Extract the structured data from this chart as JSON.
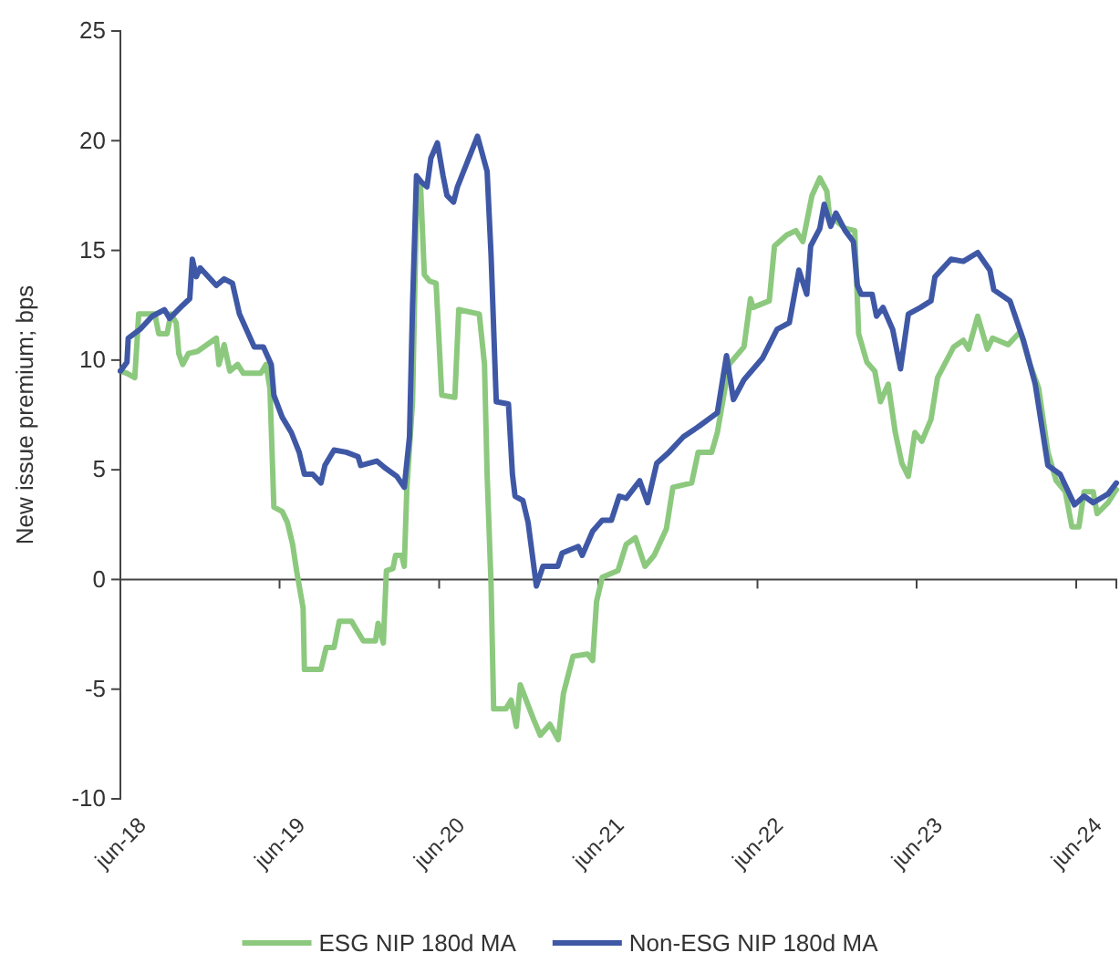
{
  "chart_data": {
    "type": "line",
    "ylabel": "New issue premium; bps",
    "xlim": [
      "2018-06-01",
      "2024-09-01"
    ],
    "xticks": [
      {
        "value": "2018-06-01",
        "label": "jun-18"
      },
      {
        "value": "2019-06-01",
        "label": "jun-19"
      },
      {
        "value": "2020-06-01",
        "label": "jun-20"
      },
      {
        "value": "2021-06-01",
        "label": "jun-21"
      },
      {
        "value": "2022-06-01",
        "label": "jun-22"
      },
      {
        "value": "2023-06-01",
        "label": "jun-23"
      },
      {
        "value": "2024-06-01",
        "label": "jun-24"
      }
    ],
    "ylim": [
      -10,
      25
    ],
    "yticks": [
      -10,
      -5,
      0,
      5,
      10,
      15,
      20,
      25
    ],
    "grid": false,
    "legend": "bottom",
    "line_style": "solid",
    "series": [
      {
        "name": "ESG NIP 180d MA",
        "color": "#8cc97e",
        "x": [
          "2018-06-01",
          "2018-06-16",
          "2018-07-04",
          "2018-07-13",
          "2018-08-19",
          "2018-08-28",
          "2018-09-16",
          "2018-09-25",
          "2018-10-07",
          "2018-10-13",
          "2018-10-22",
          "2018-11-04",
          "2018-11-25",
          "2019-01-07",
          "2019-01-13",
          "2019-01-25",
          "2019-02-07",
          "2019-02-25",
          "2019-03-10",
          "2019-04-19",
          "2019-05-01",
          "2019-05-10",
          "2019-05-19",
          "2019-06-07",
          "2019-06-19",
          "2019-07-01",
          "2019-07-10",
          "2019-07-25",
          "2019-07-28",
          "2019-09-04",
          "2019-09-16",
          "2019-10-04",
          "2019-10-16",
          "2019-11-13",
          "2019-11-28",
          "2019-12-10",
          "2020-01-07",
          "2020-01-13",
          "2020-01-25",
          "2020-02-01",
          "2020-02-16",
          "2020-02-22",
          "2020-03-07",
          "2020-03-13",
          "2020-03-19",
          "2020-04-01",
          "2020-04-10",
          "2020-04-19",
          "2020-04-28",
          "2020-05-10",
          "2020-05-25",
          "2020-06-07",
          "2020-07-07",
          "2020-07-16",
          "2020-09-01",
          "2020-09-13",
          "2020-09-19",
          "2020-09-28",
          "2020-10-04",
          "2020-11-01",
          "2020-11-13",
          "2020-11-25",
          "2020-12-04",
          "2021-01-04",
          "2021-01-19",
          "2021-02-10",
          "2021-03-01",
          "2021-03-13",
          "2021-04-04",
          "2021-05-07",
          "2021-05-19",
          "2021-05-28",
          "2021-06-10",
          "2021-07-16",
          "2021-08-04",
          "2021-08-25",
          "2021-09-16",
          "2021-10-07",
          "2021-11-04",
          "2021-11-19",
          "2022-01-01",
          "2022-01-16",
          "2022-02-16",
          "2022-03-01",
          "2022-03-28",
          "2022-05-01",
          "2022-05-16",
          "2022-05-22",
          "2022-06-28",
          "2022-07-10",
          "2022-08-07",
          "2022-08-28",
          "2022-09-13",
          "2022-10-04",
          "2022-10-22",
          "2022-11-07",
          "2022-11-13",
          "2022-12-19",
          "2023-01-10",
          "2023-01-19",
          "2023-02-07",
          "2023-02-25",
          "2023-03-10",
          "2023-03-28",
          "2023-04-13",
          "2023-04-28",
          "2023-05-13",
          "2023-05-28",
          "2023-06-13",
          "2023-07-04",
          "2023-07-19",
          "2023-08-25",
          "2023-09-16",
          "2023-09-28",
          "2023-10-19",
          "2023-11-10",
          "2023-11-22",
          "2023-12-28",
          "2024-01-25",
          "2024-02-16",
          "2024-03-07",
          "2024-03-28",
          "2024-04-16",
          "2024-05-07",
          "2024-05-22",
          "2024-06-07",
          "2024-06-19",
          "2024-07-10",
          "2024-07-19",
          "2024-08-13",
          "2024-09-01"
        ],
        "values": [
          9.5,
          9.4,
          9.2,
          12.1,
          12.1,
          11.2,
          11.2,
          12.1,
          11.7,
          10.3,
          9.8,
          10.3,
          10.4,
          11.0,
          9.8,
          10.7,
          9.5,
          9.8,
          9.4,
          9.4,
          9.8,
          8.7,
          3.3,
          3.1,
          2.6,
          1.6,
          0.4,
          -1.3,
          -4.1,
          -4.1,
          -3.1,
          -3.1,
          -1.9,
          -1.9,
          -2.4,
          -2.8,
          -2.8,
          -2.0,
          -2.9,
          0.4,
          0.5,
          1.1,
          1.1,
          0.6,
          4.2,
          8.1,
          17.0,
          18.1,
          13.9,
          13.6,
          13.5,
          8.4,
          8.3,
          12.3,
          12.1,
          9.8,
          4.8,
          -0.2,
          -5.9,
          -5.9,
          -5.5,
          -6.7,
          -4.8,
          -6.4,
          -7.1,
          -6.6,
          -7.3,
          -5.2,
          -3.5,
          -3.4,
          -3.7,
          -1.0,
          0.1,
          0.4,
          1.6,
          1.9,
          0.6,
          1.1,
          2.3,
          4.2,
          4.4,
          5.8,
          5.8,
          6.7,
          9.8,
          10.6,
          12.8,
          12.4,
          12.7,
          15.2,
          15.7,
          15.9,
          15.4,
          17.5,
          18.3,
          17.7,
          16.6,
          16.0,
          15.9,
          11.2,
          9.9,
          9.5,
          8.1,
          8.9,
          6.7,
          5.3,
          4.7,
          6.7,
          6.3,
          7.3,
          9.2,
          10.6,
          10.9,
          10.5,
          12.0,
          10.5,
          11.0,
          10.7,
          11.3,
          9.8,
          8.7,
          5.8,
          4.5,
          4.0,
          2.4,
          2.4,
          4.0,
          4.0,
          3.0,
          3.5,
          4.1
        ]
      },
      {
        "name": "Non-ESG NIP 180d MA",
        "color": "#3f58a6",
        "x": [
          "2018-06-01",
          "2018-06-16",
          "2018-06-19",
          "2018-07-16",
          "2018-08-13",
          "2018-09-10",
          "2018-09-22",
          "2018-10-22",
          "2018-11-07",
          "2018-11-13",
          "2018-11-22",
          "2018-12-01",
          "2019-01-07",
          "2019-01-25",
          "2019-02-13",
          "2019-03-01",
          "2019-03-19",
          "2019-04-04",
          "2019-04-25",
          "2019-05-13",
          "2019-05-19",
          "2019-06-07",
          "2019-06-28",
          "2019-07-16",
          "2019-07-28",
          "2019-08-16",
          "2019-09-04",
          "2019-09-13",
          "2019-10-04",
          "2019-11-01",
          "2019-11-28",
          "2019-12-04",
          "2020-01-10",
          "2020-01-28",
          "2020-02-25",
          "2020-03-13",
          "2020-03-25",
          "2020-04-01",
          "2020-04-10",
          "2020-04-22",
          "2020-05-04",
          "2020-05-13",
          "2020-05-28",
          "2020-06-10",
          "2020-06-19",
          "2020-07-04",
          "2020-07-13",
          "2020-08-28",
          "2020-09-19",
          "2020-09-28",
          "2020-10-10",
          "2020-11-07",
          "2020-11-16",
          "2020-11-22",
          "2020-12-10",
          "2020-12-22",
          "2021-01-10",
          "2021-01-25",
          "2021-02-28",
          "2021-03-10",
          "2021-04-16",
          "2021-04-25",
          "2021-05-19",
          "2021-06-10",
          "2021-07-01",
          "2021-07-19",
          "2021-08-04",
          "2021-09-04",
          "2021-09-22",
          "2021-10-13",
          "2021-11-10",
          "2021-12-13",
          "2022-01-19",
          "2022-03-01",
          "2022-03-22",
          "2022-04-07",
          "2022-05-01",
          "2022-06-13",
          "2022-07-16",
          "2022-08-13",
          "2022-09-04",
          "2022-09-22",
          "2022-10-01",
          "2022-10-22",
          "2022-11-01",
          "2022-11-16",
          "2022-11-28",
          "2022-12-19",
          "2023-01-07",
          "2023-01-16",
          "2023-01-25",
          "2023-02-19",
          "2023-03-01",
          "2023-03-16",
          "2023-04-07",
          "2023-04-25",
          "2023-05-13",
          "2023-06-10",
          "2023-07-04",
          "2023-07-13",
          "2023-08-19",
          "2023-09-16",
          "2023-10-19",
          "2023-11-16",
          "2023-11-25",
          "2024-01-01",
          "2024-02-01",
          "2024-02-28",
          "2024-03-28",
          "2024-04-25",
          "2024-05-28",
          "2024-06-19",
          "2024-07-10",
          "2024-08-13",
          "2024-09-01"
        ],
        "values": [
          9.5,
          9.9,
          11.0,
          11.4,
          12.0,
          12.3,
          11.9,
          12.5,
          12.8,
          14.6,
          13.8,
          14.2,
          13.4,
          13.7,
          13.5,
          12.1,
          11.3,
          10.6,
          10.6,
          9.8,
          8.4,
          7.4,
          6.7,
          5.8,
          4.8,
          4.8,
          4.4,
          5.2,
          5.9,
          5.8,
          5.6,
          5.2,
          5.4,
          5.1,
          4.7,
          4.2,
          6.5,
          12.5,
          18.4,
          18.1,
          17.9,
          19.2,
          19.9,
          18.4,
          17.5,
          17.2,
          17.9,
          20.2,
          18.6,
          14.8,
          8.1,
          8.0,
          4.8,
          3.8,
          3.6,
          2.6,
          -0.3,
          0.6,
          0.6,
          1.2,
          1.5,
          1.1,
          2.2,
          2.7,
          2.7,
          3.8,
          3.7,
          4.5,
          3.5,
          5.3,
          5.8,
          6.5,
          7.0,
          7.6,
          10.2,
          8.2,
          9.1,
          10.1,
          11.4,
          11.7,
          14.1,
          13.0,
          15.2,
          16.0,
          17.1,
          16.1,
          16.7,
          15.9,
          15.4,
          13.4,
          13.0,
          13.0,
          12.0,
          12.4,
          11.4,
          9.6,
          12.1,
          12.4,
          12.7,
          13.8,
          14.6,
          14.5,
          14.9,
          14.1,
          13.2,
          12.7,
          10.9,
          8.9,
          5.2,
          4.8,
          3.4,
          3.8,
          3.5,
          3.9,
          4.4
        ]
      }
    ]
  }
}
